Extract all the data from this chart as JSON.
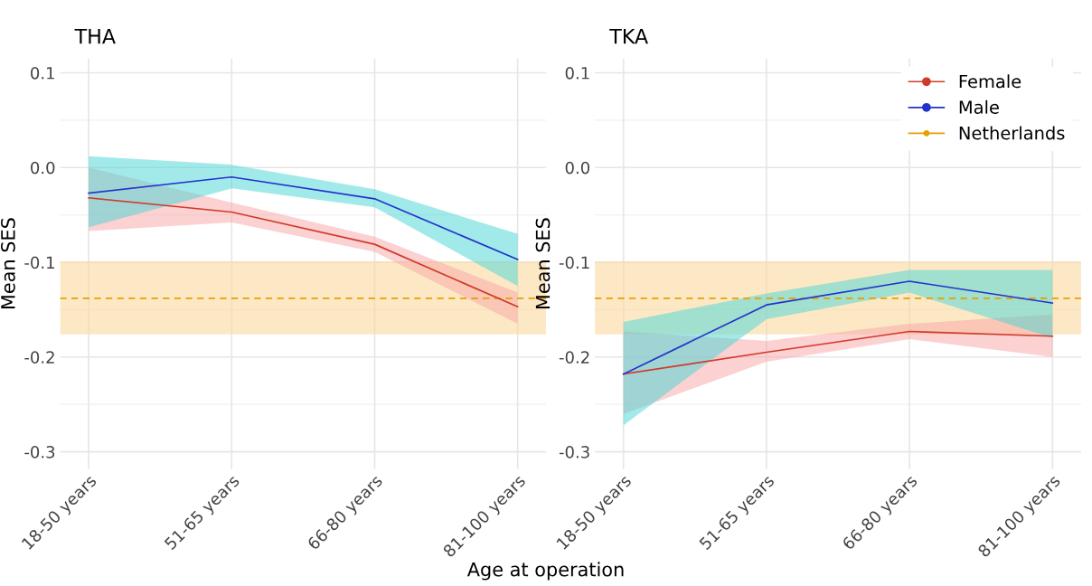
{
  "chart_data": [
    {
      "type": "line",
      "title": "THA",
      "xlabel": "Age at operation",
      "ylabel": "Mean SES",
      "categories": [
        "18-50 years",
        "51-65 years",
        "66-80 years",
        "81-100 years"
      ],
      "series": [
        {
          "color": "#d03a2a",
          "values": [
            -0.032,
            -0.047,
            -0.081,
            -0.147
          ],
          "lower": [
            -0.067,
            -0.058,
            -0.089,
            -0.165
          ],
          "upper": [
            0.0,
            -0.037,
            -0.073,
            -0.132
          ]
        },
        {
          "color": "#2233cc",
          "values": [
            -0.027,
            -0.01,
            -0.033,
            -0.097
          ],
          "lower": [
            -0.063,
            -0.022,
            -0.042,
            -0.125
          ],
          "upper": [
            0.012,
            0.003,
            -0.023,
            -0.07
          ]
        }
      ],
      "ref_lines": [
        {
          "axis": "y",
          "value": -0.138,
          "color": "#e6a000",
          "line_style": "dashed"
        }
      ],
      "bands": [
        {
          "axis": "y",
          "from": -0.176,
          "to": -0.099,
          "color": "#fbd9a0"
        }
      ],
      "ylim": [
        -0.318,
        0.115
      ],
      "yticks": [
        {
          "value": 0.1,
          "label": "0.1"
        },
        {
          "value": 0.0,
          "label": "0.0"
        },
        {
          "value": -0.1,
          "label": "-0.1"
        },
        {
          "value": -0.2,
          "label": "-0.2"
        },
        {
          "value": -0.3,
          "label": "-0.3"
        }
      ],
      "grid": true,
      "legend": false
    },
    {
      "type": "line",
      "title": "TKA",
      "ylabel": "Mean SES",
      "categories": [
        "18-50 years",
        "51-65 years",
        "66-80 years",
        "81-100 years"
      ],
      "series": [
        {
          "name": "Female",
          "color": "#d03a2a",
          "values": [
            -0.218,
            -0.195,
            -0.173,
            -0.178
          ],
          "lower": [
            -0.26,
            -0.205,
            -0.181,
            -0.2
          ],
          "upper": [
            -0.173,
            -0.183,
            -0.165,
            -0.155
          ]
        },
        {
          "name": "Male",
          "color": "#2233cc",
          "values": [
            -0.218,
            -0.145,
            -0.12,
            -0.143
          ],
          "lower": [
            -0.272,
            -0.16,
            -0.132,
            -0.18
          ],
          "upper": [
            -0.163,
            -0.133,
            -0.108,
            -0.108
          ]
        }
      ],
      "ref_lines": [
        {
          "axis": "y",
          "value": -0.138,
          "label": "Netherlands",
          "color": "#e6a000",
          "line_style": "dashed"
        }
      ],
      "bands": [
        {
          "axis": "y",
          "from": -0.176,
          "to": -0.099,
          "color": "#fbd9a0"
        }
      ],
      "ylim": [
        -0.318,
        0.115
      ],
      "yticks": [
        {
          "value": 0.1,
          "label": "0.1"
        },
        {
          "value": 0.0,
          "label": "0.0"
        },
        {
          "value": -0.1,
          "label": "-0.1"
        },
        {
          "value": -0.2,
          "label": "-0.2"
        },
        {
          "value": -0.3,
          "label": "-0.3"
        }
      ],
      "grid": true,
      "legend": "top right"
    }
  ]
}
